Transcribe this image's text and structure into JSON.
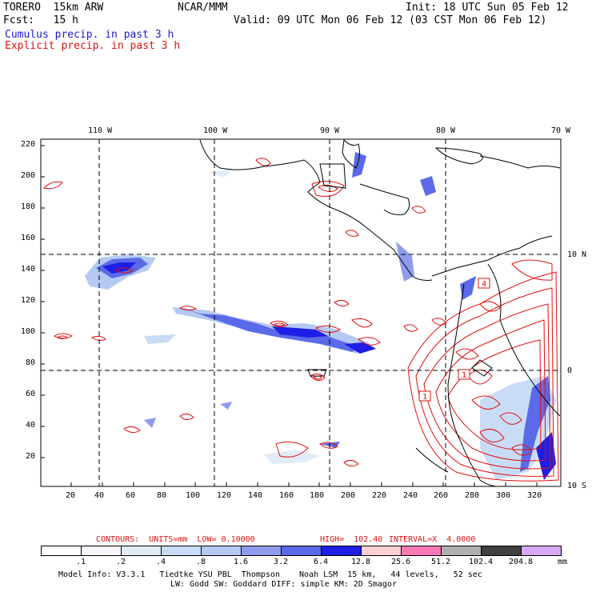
{
  "header": {
    "model": "TORERO  15km ARW",
    "org": "NCAR/MMM",
    "init": "Init: 18 UTC Sun 05 Feb 12",
    "fcst": "Fcst:   15 h",
    "valid": "Valid: 09 UTC Mon 06 Feb 12 (03 CST Mon 06 Feb 12)",
    "field1": "Cumulus precip. in past 3 h",
    "field2": "Explicit precip. in past 3 h",
    "field1_color": "#1a1acc",
    "field2_color": "#e01010"
  },
  "map": {
    "lon_labels": [
      "110 W",
      "100 W",
      "90 W",
      "80 W",
      "70 W"
    ],
    "lat_labels": [
      "10 N",
      "0",
      "10 S"
    ],
    "y_ticks": [
      "220",
      "200",
      "180",
      "160",
      "140",
      "120",
      "100",
      "80",
      "60",
      "40",
      "20"
    ],
    "x_ticks": [
      "20",
      "40",
      "60",
      "80",
      "100",
      "120",
      "140",
      "160",
      "180",
      "200",
      "220",
      "240",
      "260",
      "280",
      "300",
      "320"
    ],
    "box_labels": [
      "4",
      "1",
      "1"
    ]
  },
  "contour_info": {
    "contours": "CONTOURS:  UNITS=mm  LOW= 0.10000",
    "high": "HIGH=  102.40",
    "interval": "INTERVAL=X  4.0000"
  },
  "colorbar": {
    "labels": [
      ".1",
      ".2",
      ".4",
      ".8",
      "1.6",
      "3.2",
      "6.4",
      "12.8",
      "25.6",
      "51.2",
      "102.4",
      "204.8"
    ],
    "colors": [
      "#ffffff",
      "#f4f6fc",
      "#e2ebf8",
      "#c9dcf6",
      "#b5caf3",
      "#8f9cec",
      "#5a6ae8",
      "#1e1ee6",
      "#fdd0d4",
      "#f77ab7",
      "#b0b0b0",
      "#404040",
      "#d8a8f8"
    ],
    "units": "mm"
  },
  "footer": {
    "line1": "Model Info: V3.3.1   Tiedtke YSU PBL  Thompson    Noah LSM  15 km,   44 levels,   52 sec",
    "line2": "LW: Godd SW: Goddard DIFF: simple KM: 2D Smagor"
  }
}
